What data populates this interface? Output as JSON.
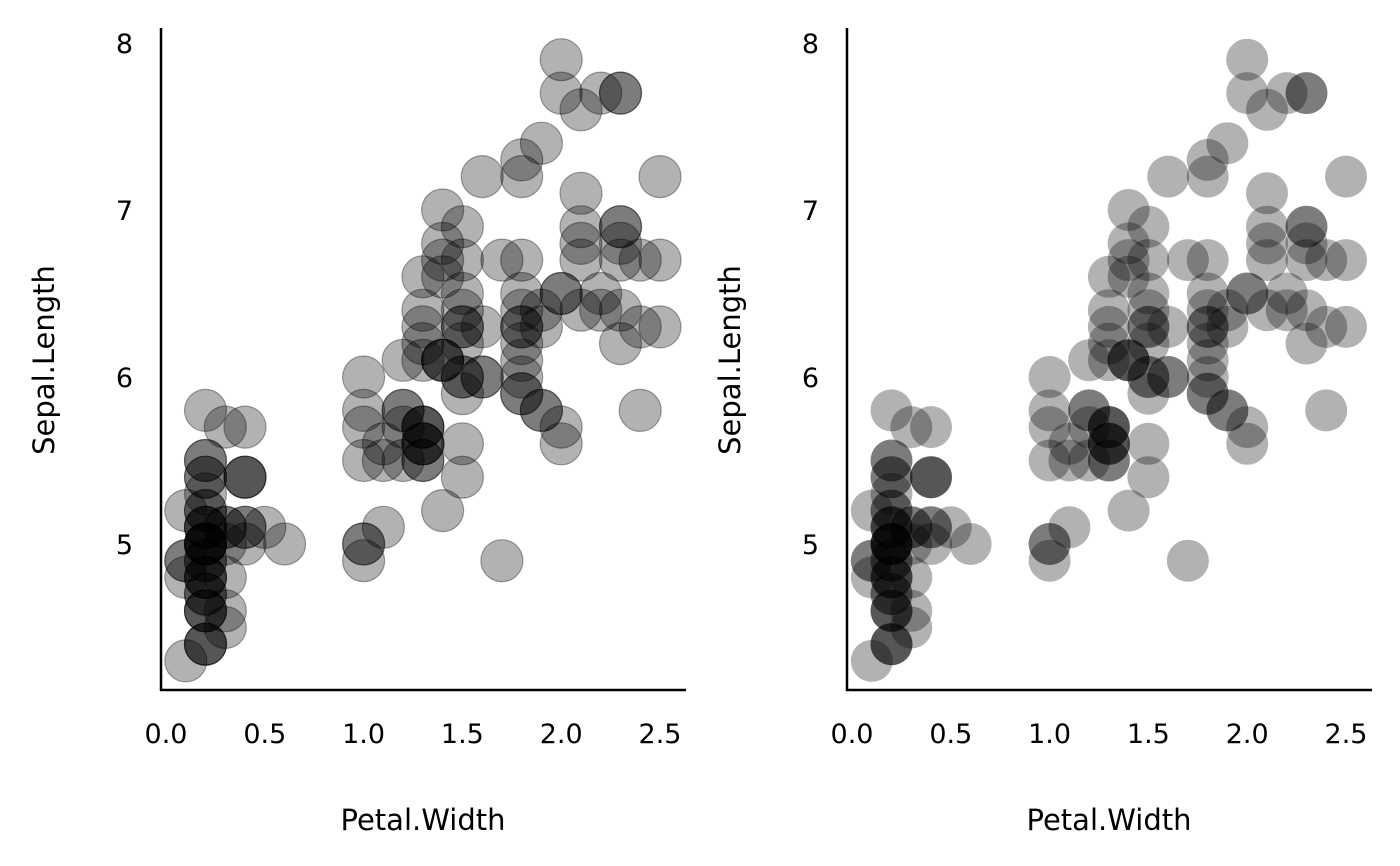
{
  "chart_data": [
    {
      "type": "scatter",
      "panel": "left",
      "marker_style": "outlined circles, translucent grey fill",
      "xlabel": "Petal.Width",
      "ylabel": "Sepal.Length",
      "xticks": [
        "0.0",
        "0.5",
        "1.0",
        "1.5",
        "2.0",
        "2.5"
      ],
      "yticks": [
        "5",
        "6",
        "7",
        "8"
      ],
      "xlim": [
        -0.03,
        2.62
      ],
      "ylim": [
        4.13,
        8.08
      ],
      "grid": false
    },
    {
      "type": "scatter",
      "panel": "right",
      "marker_style": "borderless circles, translucent grey fill",
      "xlabel": "Petal.Width",
      "ylabel": "Sepal.Length",
      "xticks": [
        "0.0",
        "0.5",
        "1.0",
        "1.5",
        "2.0",
        "2.5"
      ],
      "yticks": [
        "5",
        "6",
        "7",
        "8"
      ],
      "xlim": [
        -0.03,
        2.62
      ],
      "ylim": [
        4.13,
        8.08
      ],
      "grid": false
    }
  ],
  "points": {
    "x": [
      0.2,
      0.2,
      0.2,
      0.2,
      0.2,
      0.4,
      0.3,
      0.2,
      0.2,
      0.1,
      0.2,
      0.2,
      0.1,
      0.1,
      0.2,
      0.4,
      0.4,
      0.3,
      0.3,
      0.3,
      0.2,
      0.4,
      0.2,
      0.5,
      0.2,
      0.2,
      0.4,
      0.2,
      0.2,
      0.2,
      0.2,
      0.4,
      0.1,
      0.2,
      0.2,
      0.2,
      0.2,
      0.1,
      0.2,
      0.2,
      0.3,
      0.3,
      0.2,
      0.6,
      0.4,
      0.3,
      0.2,
      0.2,
      0.2,
      0.2,
      1.4,
      1.5,
      1.5,
      1.3,
      1.5,
      1.3,
      1.6,
      1.0,
      1.3,
      1.4,
      1.0,
      1.5,
      1.0,
      1.4,
      1.3,
      1.4,
      1.5,
      1.0,
      1.5,
      1.1,
      1.8,
      1.3,
      1.5,
      1.2,
      1.3,
      1.4,
      1.4,
      1.7,
      1.5,
      1.0,
      1.1,
      1.0,
      1.2,
      1.6,
      1.5,
      1.6,
      1.5,
      1.3,
      1.3,
      1.3,
      1.2,
      1.4,
      1.2,
      1.0,
      1.3,
      1.2,
      1.3,
      1.3,
      1.1,
      1.3,
      2.5,
      1.9,
      2.1,
      1.8,
      2.2,
      2.1,
      1.7,
      1.8,
      1.8,
      2.5,
      2.0,
      1.9,
      2.1,
      2.0,
      2.4,
      2.3,
      1.8,
      2.2,
      2.3,
      1.5,
      2.3,
      2.0,
      2.0,
      1.8,
      2.1,
      1.8,
      1.8,
      1.8,
      2.1,
      1.6,
      1.9,
      2.0,
      2.2,
      1.5,
      1.4,
      2.3,
      2.4,
      1.8,
      1.8,
      2.1,
      2.4,
      2.3,
      1.9,
      2.3,
      2.5,
      2.3,
      1.9,
      2.0,
      2.3,
      1.8
    ],
    "y": [
      5.1,
      4.9,
      4.7,
      4.6,
      5.0,
      5.4,
      4.6,
      5.0,
      4.4,
      4.9,
      5.4,
      4.8,
      4.8,
      4.3,
      5.8,
      5.7,
      5.4,
      5.1,
      5.7,
      5.1,
      5.4,
      5.1,
      4.6,
      5.1,
      4.8,
      5.0,
      5.0,
      5.2,
      5.2,
      4.7,
      4.8,
      5.4,
      5.2,
      5.5,
      4.9,
      5.0,
      5.5,
      4.9,
      4.4,
      5.1,
      5.0,
      4.5,
      4.4,
      5.0,
      5.1,
      4.8,
      5.1,
      4.6,
      5.3,
      5.0,
      7.0,
      6.4,
      6.9,
      5.5,
      6.5,
      5.7,
      6.3,
      4.9,
      6.6,
      5.2,
      5.0,
      5.9,
      6.0,
      6.1,
      5.6,
      6.7,
      5.6,
      5.8,
      6.2,
      5.6,
      5.9,
      6.1,
      6.3,
      6.1,
      6.4,
      6.6,
      6.8,
      6.7,
      6.0,
      5.7,
      5.5,
      5.5,
      5.8,
      6.0,
      5.4,
      6.0,
      6.7,
      6.3,
      5.6,
      5.5,
      5.5,
      6.1,
      5.8,
      5.0,
      5.6,
      5.7,
      5.7,
      6.2,
      5.1,
      5.7,
      6.3,
      5.8,
      7.1,
      6.3,
      6.5,
      7.6,
      4.9,
      7.3,
      6.7,
      7.2,
      6.5,
      6.4,
      6.8,
      5.7,
      5.8,
      6.4,
      6.5,
      7.7,
      7.7,
      6.0,
      6.9,
      5.6,
      7.7,
      6.3,
      6.7,
      7.2,
      6.2,
      6.1,
      6.4,
      7.2,
      7.4,
      7.9,
      6.4,
      6.3,
      6.1,
      7.7,
      6.3,
      6.4,
      6.0,
      6.9,
      6.7,
      6.9,
      5.8,
      6.8,
      6.7,
      6.7,
      6.3,
      6.5,
      6.2,
      5.9
    ]
  },
  "colors": {
    "marker_fill": "#000000",
    "marker_fill_opacity": 0.3,
    "axis": "#000000",
    "background": "#ffffff"
  }
}
